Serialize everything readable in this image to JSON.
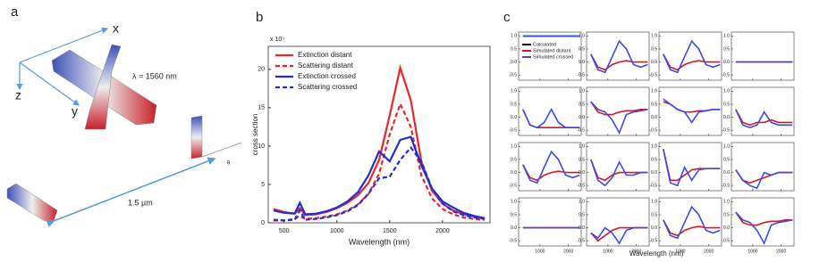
{
  "panel_a": {
    "label": "a",
    "axis_x": "x",
    "axis_y": "y",
    "axis_z": "z",
    "wavelength": "λ = 1560 nm",
    "distance": "1.5 µm",
    "angle": "θ"
  },
  "chart_data": [
    {
      "type": "line",
      "panel_label": "b",
      "multiplier": "x 10⁵",
      "ylabel": "cross section",
      "xlabel": "Wavelength (nm)",
      "x": [
        400,
        500,
        600,
        650,
        700,
        800,
        900,
        1000,
        1100,
        1200,
        1300,
        1400,
        1500,
        1600,
        1700,
        1800,
        1900,
        2000,
        2100,
        2200,
        2300,
        2400
      ],
      "xlim": [
        350,
        2450
      ],
      "xticks": [
        500,
        1000,
        1500,
        2000
      ],
      "ylim": [
        0,
        23
      ],
      "yticks": [
        0,
        5,
        10,
        15,
        20
      ],
      "legend": "upper left",
      "series": [
        {
          "name": "Extinction distant",
          "color": "#e8262a",
          "dash": false,
          "values": [
            1.8,
            1.4,
            1.2,
            1.9,
            1.0,
            1.1,
            1.4,
            1.9,
            2.6,
            3.6,
            5.2,
            8.2,
            14,
            20.2,
            16,
            8,
            4.2,
            2.5,
            1.6,
            1.1,
            0.8,
            0.6
          ]
        },
        {
          "name": "Scattering distant",
          "color": "#e8262a",
          "dash": true,
          "values": [
            0.3,
            0.3,
            0.5,
            0.9,
            0.5,
            0.6,
            0.8,
            1.1,
            1.6,
            2.4,
            3.8,
            6.4,
            11.5,
            15.5,
            12.5,
            6.2,
            3.2,
            1.8,
            1.1,
            0.7,
            0.5,
            0.4
          ]
        },
        {
          "name": "Extinction crossed",
          "color": "#1f2fd0",
          "dash": false,
          "values": [
            1.6,
            1.3,
            1.2,
            2.6,
            1.1,
            1.2,
            1.5,
            2.0,
            2.8,
            4.0,
            6.2,
            9.3,
            8.0,
            10.8,
            11.2,
            7.5,
            4.5,
            2.8,
            2.0,
            1.3,
            0.9,
            0.6
          ]
        },
        {
          "name": "Scattering crossed",
          "color": "#1f2fd0",
          "dash": true,
          "values": [
            0.4,
            0.3,
            0.4,
            1.6,
            0.4,
            0.5,
            0.7,
            1.0,
            1.5,
            2.3,
            3.8,
            5.8,
            6.0,
            8.2,
            9.8,
            8.0,
            4.5,
            2.5,
            1.5,
            1.0,
            0.7,
            0.5
          ]
        }
      ]
    },
    {
      "type": "line-grid",
      "panel_label": "c",
      "xlabel": "Wavelength (nm)",
      "x": [
        400,
        650,
        900,
        1150,
        1400,
        1650,
        1900,
        2150,
        2400
      ],
      "xlim": [
        250,
        2450
      ],
      "xticks": [
        1000,
        2000
      ],
      "ylim": [
        -0.7,
        1.15
      ],
      "yticks": [
        {
          "value": -0.5,
          "label": "-0.5"
        },
        {
          "value": 0,
          "label": "0.0"
        },
        {
          "value": 0.5,
          "label": "0.5"
        },
        {
          "value": 1,
          "label": "1.0"
        }
      ],
      "subplots": [
        {
          "series": [
            {
              "name": "Calculated",
              "color": "#000000",
              "values": [
                1,
                1,
                1,
                1,
                1,
                1,
                1,
                1,
                1
              ]
            },
            {
              "name": "Simulated distant",
              "color": "#d7191c",
              "values": [
                1,
                1,
                1,
                1,
                1,
                1,
                1,
                1,
                1
              ]
            },
            {
              "name": "Simulated crossed",
              "color": "#3a4bea",
              "values": [
                1,
                1,
                1,
                1,
                1,
                1,
                1,
                1,
                1
              ]
            }
          ]
        },
        {
          "series": [
            {
              "color": "#d7191c",
              "values": [
                0.3,
                -0.2,
                -0.3,
                -0.1,
                0.0,
                0.05,
                0.0,
                0.0,
                0.0
              ]
            },
            {
              "color": "#3a4bea",
              "values": [
                0.3,
                -0.3,
                -0.4,
                0.2,
                0.8,
                0.5,
                -0.1,
                -0.2,
                -0.1
              ]
            }
          ]
        },
        {
          "series": [
            {
              "color": "#d7191c",
              "values": [
                0.3,
                -0.2,
                -0.3,
                -0.1,
                0.0,
                0.05,
                0.0,
                0.0,
                0.0
              ]
            },
            {
              "color": "#3a4bea",
              "values": [
                0.3,
                -0.3,
                -0.4,
                0.2,
                0.8,
                0.5,
                -0.1,
                -0.2,
                -0.1
              ]
            }
          ]
        },
        {
          "series": [
            {
              "color": "#d7191c",
              "values": [
                0,
                0,
                0,
                0,
                0,
                0,
                0,
                0,
                0
              ]
            },
            {
              "color": "#3a4bea",
              "values": [
                0,
                0,
                0,
                0,
                0,
                0,
                0,
                0,
                0
              ]
            }
          ]
        },
        {
          "series": [
            {
              "color": "#d7191c",
              "values": [
                0.3,
                -0.3,
                -0.4,
                -0.4,
                -0.4,
                -0.4,
                -0.4,
                -0.4,
                -0.4
              ]
            },
            {
              "color": "#3a4bea",
              "values": [
                0.3,
                -0.3,
                -0.4,
                -0.2,
                0.3,
                -0.2,
                -0.4,
                -0.4,
                -0.4
              ]
            }
          ]
        },
        {
          "series": [
            {
              "color": "#d7191c",
              "values": [
                0.6,
                0.2,
                0.1,
                0.1,
                0.2,
                0.25,
                0.25,
                0.3,
                0.3
              ]
            },
            {
              "color": "#3a4bea",
              "values": [
                0.6,
                0.3,
                0.2,
                -0.1,
                -0.6,
                0.1,
                0.2,
                0.25,
                0.3
              ]
            }
          ]
        },
        {
          "series": [
            {
              "color": "#d7191c",
              "values": [
                0.6,
                0.5,
                0.3,
                0.2,
                0.2,
                0.25,
                0.25,
                0.3,
                0.3
              ]
            },
            {
              "color": "#3a4bea",
              "values": [
                0.7,
                0.5,
                0.3,
                0.2,
                -0.2,
                0.2,
                0.25,
                0.3,
                0.3
              ]
            }
          ]
        },
        {
          "series": [
            {
              "color": "#d7191c",
              "values": [
                0.3,
                -0.2,
                -0.3,
                -0.2,
                -0.2,
                -0.1,
                -0.2,
                -0.2,
                -0.2
              ]
            },
            {
              "color": "#3a4bea",
              "values": [
                0.3,
                -0.3,
                -0.4,
                -0.3,
                0.2,
                -0.2,
                -0.3,
                -0.3,
                -0.3
              ]
            }
          ]
        },
        {
          "series": [
            {
              "color": "#d7191c",
              "values": [
                0.3,
                -0.2,
                -0.3,
                -0.1,
                0.0,
                0.05,
                0.0,
                0.0,
                0.0
              ]
            },
            {
              "color": "#3a4bea",
              "values": [
                0.3,
                -0.3,
                -0.4,
                0.2,
                0.8,
                0.5,
                -0.1,
                -0.2,
                -0.1
              ]
            }
          ]
        },
        {
          "series": [
            {
              "color": "#d7191c",
              "values": [
                0.5,
                -0.2,
                -0.3,
                -0.1,
                0.0,
                0.0,
                0.0,
                0.0,
                0.0
              ]
            },
            {
              "color": "#3a4bea",
              "values": [
                0.5,
                -0.3,
                -0.5,
                -0.2,
                0.4,
                -0.1,
                -0.1,
                0.0,
                0.0
              ]
            }
          ]
        },
        {
          "series": [
            {
              "color": "#d7191c",
              "values": [
                0.9,
                -0.3,
                -0.3,
                -0.1,
                0.1,
                0.15,
                0.15,
                0.15,
                0.15
              ]
            },
            {
              "color": "#3a4bea",
              "values": [
                0.9,
                -0.4,
                -0.5,
                0.2,
                -0.3,
                0.1,
                0.15,
                0.15,
                0.15
              ]
            }
          ]
        },
        {
          "series": [
            {
              "color": "#d7191c",
              "values": [
                0.1,
                -0.3,
                -0.4,
                -0.3,
                -0.2,
                -0.1,
                0.0,
                0.0,
                0.0
              ]
            },
            {
              "color": "#3a4bea",
              "values": [
                0.1,
                -0.3,
                -0.5,
                -0.6,
                0.0,
                -0.1,
                0.0,
                0.0,
                0.0
              ]
            }
          ]
        },
        {
          "series": [
            {
              "color": "#d7191c",
              "values": [
                0,
                0,
                0,
                0,
                0,
                0,
                0,
                0,
                0
              ]
            },
            {
              "color": "#3a4bea",
              "values": [
                0,
                0,
                0,
                0,
                0,
                0,
                0,
                0,
                0
              ]
            }
          ]
        },
        {
          "series": [
            {
              "color": "#d7191c",
              "values": [
                -0.2,
                -0.5,
                -0.3,
                -0.1,
                0.0,
                0.0,
                0.0,
                0.0,
                0.0
              ]
            },
            {
              "color": "#3a4bea",
              "values": [
                -0.2,
                -0.4,
                0.0,
                -0.2,
                -0.6,
                -0.1,
                0.0,
                0.0,
                0.0
              ]
            }
          ]
        },
        {
          "series": [
            {
              "color": "#d7191c",
              "values": [
                0.3,
                -0.2,
                -0.3,
                -0.1,
                0.0,
                0.05,
                0.0,
                0.0,
                0.0
              ]
            },
            {
              "color": "#3a4bea",
              "values": [
                0.3,
                -0.3,
                -0.4,
                0.2,
                0.8,
                0.5,
                -0.1,
                -0.2,
                -0.1
              ]
            }
          ]
        },
        {
          "series": [
            {
              "color": "#d7191c",
              "values": [
                0.6,
                0.2,
                0.1,
                0.1,
                0.2,
                0.25,
                0.25,
                0.3,
                0.3
              ]
            },
            {
              "color": "#3a4bea",
              "values": [
                0.6,
                0.3,
                0.2,
                -0.1,
                -0.6,
                0.1,
                0.2,
                0.25,
                0.3
              ]
            }
          ]
        }
      ]
    }
  ]
}
